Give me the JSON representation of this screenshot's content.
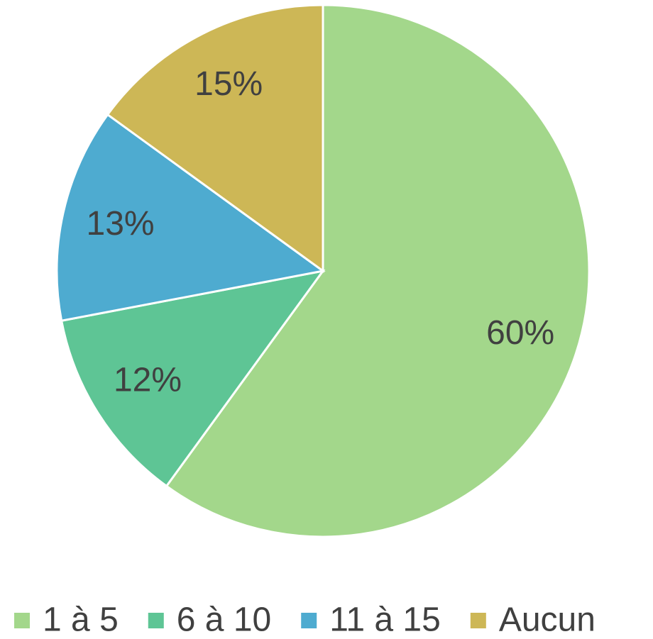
{
  "chart_data": {
    "type": "pie",
    "categories": [
      "1 à 5",
      "6 à 10",
      "11 à 15",
      "Aucun"
    ],
    "values": [
      60,
      12,
      13,
      15
    ],
    "value_labels": [
      "60%",
      "12%",
      "13%",
      "15%"
    ],
    "colors": [
      "#a3d78b",
      "#5ec595",
      "#4eabd0",
      "#cdb756"
    ],
    "legend": "bottom"
  }
}
